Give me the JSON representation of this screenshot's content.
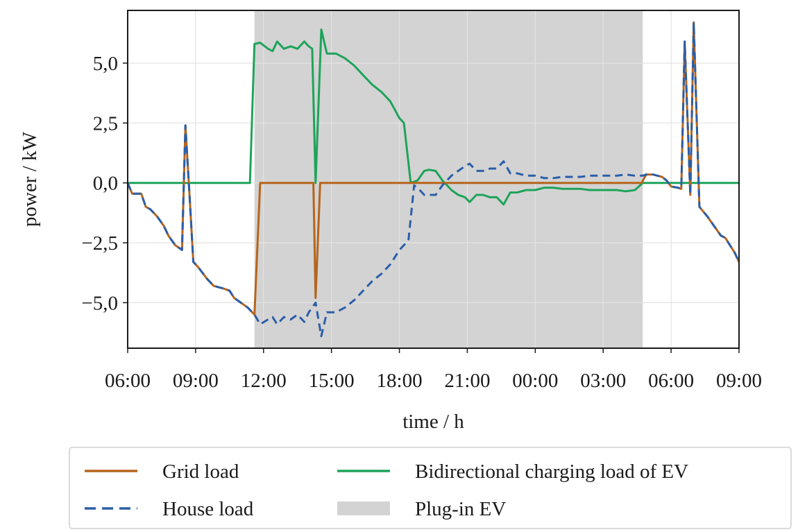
{
  "chart_data": {
    "type": "line",
    "title": "",
    "xlabel": "time / h",
    "ylabel": "power / kW",
    "x_unit": "hours from 06:00",
    "xlim": [
      0,
      27
    ],
    "ylim": [
      -6.9,
      7.2
    ],
    "x_ticks": [
      {
        "value": 0,
        "label": "06:00"
      },
      {
        "value": 3,
        "label": "09:00"
      },
      {
        "value": 6,
        "label": "12:00"
      },
      {
        "value": 9,
        "label": "15:00"
      },
      {
        "value": 12,
        "label": "18:00"
      },
      {
        "value": 15,
        "label": "21:00"
      },
      {
        "value": 18,
        "label": "00:00"
      },
      {
        "value": 21,
        "label": "03:00"
      },
      {
        "value": 24,
        "label": "06:00"
      },
      {
        "value": 27,
        "label": "09:00"
      }
    ],
    "y_ticks": [
      {
        "value": -5.0,
        "label": "−5,0"
      },
      {
        "value": -2.5,
        "label": "−2,5"
      },
      {
        "value": 0.0,
        "label": "0,0"
      },
      {
        "value": 2.5,
        "label": "2,5"
      },
      {
        "value": 5.0,
        "label": "5,0"
      }
    ],
    "grid": true,
    "legend_position": "bottom-outside",
    "shaded_regions": [
      {
        "name": "Plug-in EV",
        "x_start": 5.6,
        "x_end": 22.75,
        "color": "#d3d3d3"
      }
    ],
    "series": [
      {
        "name": "Grid load",
        "color": "#b5651d",
        "style": "solid",
        "points": [
          [
            0,
            0
          ],
          [
            0.2,
            -0.45
          ],
          [
            0.6,
            -0.45
          ],
          [
            0.8,
            -1.0
          ],
          [
            1.0,
            -1.1
          ],
          [
            1.3,
            -1.4
          ],
          [
            1.6,
            -1.8
          ],
          [
            1.8,
            -2.2
          ],
          [
            2.1,
            -2.6
          ],
          [
            2.4,
            -2.8
          ],
          [
            2.55,
            2.4
          ],
          [
            2.75,
            -0.8
          ],
          [
            2.9,
            -3.3
          ],
          [
            3.1,
            -3.5
          ],
          [
            3.5,
            -4.0
          ],
          [
            3.8,
            -4.3
          ],
          [
            4.2,
            -4.4
          ],
          [
            4.5,
            -4.5
          ],
          [
            4.7,
            -4.8
          ],
          [
            5.0,
            -5.0
          ],
          [
            5.3,
            -5.2
          ],
          [
            5.6,
            -5.5
          ],
          [
            5.85,
            0
          ],
          [
            8.2,
            0
          ],
          [
            8.3,
            -4.8
          ],
          [
            8.5,
            0
          ],
          [
            19,
            0
          ],
          [
            22.7,
            0
          ],
          [
            22.9,
            0.35
          ],
          [
            23.2,
            0.35
          ],
          [
            23.4,
            0.3
          ],
          [
            23.6,
            0.25
          ],
          [
            23.8,
            0.1
          ],
          [
            24.0,
            -0.15
          ],
          [
            24.3,
            -0.2
          ],
          [
            24.45,
            -0.25
          ],
          [
            24.6,
            5.9
          ],
          [
            24.85,
            -0.5
          ],
          [
            25.0,
            6.7
          ],
          [
            25.25,
            -1.0
          ],
          [
            25.6,
            -1.4
          ],
          [
            25.9,
            -1.8
          ],
          [
            26.2,
            -2.2
          ],
          [
            26.4,
            -2.3
          ],
          [
            26.6,
            -2.6
          ],
          [
            26.8,
            -2.9
          ],
          [
            27,
            -3.3
          ]
        ]
      },
      {
        "name": "House load",
        "color": "#2b5ea8",
        "style": "dashed",
        "points": [
          [
            0,
            0
          ],
          [
            0.2,
            -0.45
          ],
          [
            0.6,
            -0.45
          ],
          [
            0.8,
            -1.0
          ],
          [
            1.0,
            -1.1
          ],
          [
            1.3,
            -1.4
          ],
          [
            1.6,
            -1.8
          ],
          [
            1.8,
            -2.2
          ],
          [
            2.1,
            -2.6
          ],
          [
            2.4,
            -2.8
          ],
          [
            2.55,
            2.4
          ],
          [
            2.75,
            -0.8
          ],
          [
            2.9,
            -3.3
          ],
          [
            3.1,
            -3.5
          ],
          [
            3.5,
            -4.0
          ],
          [
            3.8,
            -4.3
          ],
          [
            4.2,
            -4.4
          ],
          [
            4.5,
            -4.5
          ],
          [
            4.7,
            -4.8
          ],
          [
            5.0,
            -5.0
          ],
          [
            5.3,
            -5.2
          ],
          [
            5.6,
            -5.5
          ],
          [
            5.85,
            -5.9
          ],
          [
            6.2,
            -5.7
          ],
          [
            6.4,
            -5.6
          ],
          [
            6.6,
            -5.9
          ],
          [
            6.9,
            -5.6
          ],
          [
            7.2,
            -5.7
          ],
          [
            7.5,
            -5.5
          ],
          [
            7.8,
            -5.8
          ],
          [
            8.0,
            -5.4
          ],
          [
            8.3,
            -5.0
          ],
          [
            8.55,
            -6.4
          ],
          [
            8.8,
            -5.4
          ],
          [
            9.2,
            -5.4
          ],
          [
            9.6,
            -5.2
          ],
          [
            10.0,
            -4.9
          ],
          [
            10.4,
            -4.5
          ],
          [
            10.8,
            -4.1
          ],
          [
            11.2,
            -3.8
          ],
          [
            11.6,
            -3.4
          ],
          [
            12.0,
            -2.8
          ],
          [
            12.4,
            -2.4
          ],
          [
            12.65,
            -0.1
          ],
          [
            12.9,
            -0.3
          ],
          [
            13.1,
            -0.5
          ],
          [
            13.3,
            -0.5
          ],
          [
            13.6,
            -0.5
          ],
          [
            13.9,
            -0.1
          ],
          [
            14.3,
            0.3
          ],
          [
            14.6,
            0.5
          ],
          [
            14.9,
            0.7
          ],
          [
            15.1,
            0.8
          ],
          [
            15.4,
            0.5
          ],
          [
            15.7,
            0.5
          ],
          [
            16.0,
            0.6
          ],
          [
            16.3,
            0.6
          ],
          [
            16.6,
            0.9
          ],
          [
            16.9,
            0.4
          ],
          [
            17.2,
            0.4
          ],
          [
            17.6,
            0.3
          ],
          [
            18.0,
            0.3
          ],
          [
            18.4,
            0.2
          ],
          [
            18.8,
            0.2
          ],
          [
            19.2,
            0.25
          ],
          [
            19.6,
            0.25
          ],
          [
            20.0,
            0.25
          ],
          [
            20.4,
            0.3
          ],
          [
            20.8,
            0.3
          ],
          [
            21.2,
            0.3
          ],
          [
            21.6,
            0.3
          ],
          [
            22.0,
            0.35
          ],
          [
            22.4,
            0.3
          ],
          [
            22.75,
            0.3
          ],
          [
            22.9,
            0.35
          ],
          [
            23.2,
            0.35
          ],
          [
            23.4,
            0.3
          ],
          [
            23.6,
            0.25
          ],
          [
            23.8,
            0.1
          ],
          [
            24.0,
            -0.15
          ],
          [
            24.3,
            -0.2
          ],
          [
            24.45,
            -0.25
          ],
          [
            24.6,
            5.9
          ],
          [
            24.85,
            -0.5
          ],
          [
            25.0,
            6.7
          ],
          [
            25.25,
            -1.0
          ],
          [
            25.6,
            -1.4
          ],
          [
            25.9,
            -1.8
          ],
          [
            26.2,
            -2.2
          ],
          [
            26.4,
            -2.3
          ],
          [
            26.6,
            -2.6
          ],
          [
            26.8,
            -2.9
          ],
          [
            27,
            -3.3
          ]
        ]
      },
      {
        "name": "Bidirectional charging load of EV",
        "color": "#1ea35a",
        "style": "solid",
        "points": [
          [
            0,
            0
          ],
          [
            5.4,
            0
          ],
          [
            5.6,
            5.8
          ],
          [
            5.85,
            5.85
          ],
          [
            6.2,
            5.6
          ],
          [
            6.4,
            5.5
          ],
          [
            6.6,
            5.9
          ],
          [
            6.9,
            5.6
          ],
          [
            7.2,
            5.7
          ],
          [
            7.5,
            5.6
          ],
          [
            7.8,
            5.9
          ],
          [
            8.0,
            5.7
          ],
          [
            8.15,
            5.6
          ],
          [
            8.3,
            0
          ],
          [
            8.55,
            6.4
          ],
          [
            8.8,
            5.4
          ],
          [
            9.2,
            5.4
          ],
          [
            9.6,
            5.2
          ],
          [
            10.0,
            4.9
          ],
          [
            10.4,
            4.5
          ],
          [
            10.8,
            4.1
          ],
          [
            11.2,
            3.8
          ],
          [
            11.6,
            3.4
          ],
          [
            12.0,
            2.7
          ],
          [
            12.2,
            2.5
          ],
          [
            12.5,
            0
          ],
          [
            12.8,
            0.1
          ],
          [
            13.1,
            0.5
          ],
          [
            13.3,
            0.55
          ],
          [
            13.6,
            0.5
          ],
          [
            13.9,
            0.1
          ],
          [
            14.3,
            -0.3
          ],
          [
            14.6,
            -0.5
          ],
          [
            14.9,
            -0.6
          ],
          [
            15.1,
            -0.8
          ],
          [
            15.4,
            -0.5
          ],
          [
            15.7,
            -0.5
          ],
          [
            16.0,
            -0.6
          ],
          [
            16.3,
            -0.6
          ],
          [
            16.6,
            -0.9
          ],
          [
            16.9,
            -0.4
          ],
          [
            17.2,
            -0.4
          ],
          [
            17.6,
            -0.3
          ],
          [
            18.0,
            -0.3
          ],
          [
            18.4,
            -0.2
          ],
          [
            18.8,
            -0.2
          ],
          [
            19.2,
            -0.25
          ],
          [
            19.6,
            -0.25
          ],
          [
            20.0,
            -0.25
          ],
          [
            20.4,
            -0.3
          ],
          [
            20.8,
            -0.3
          ],
          [
            21.2,
            -0.3
          ],
          [
            21.6,
            -0.3
          ],
          [
            22.0,
            -0.35
          ],
          [
            22.4,
            -0.3
          ],
          [
            22.75,
            0
          ],
          [
            27,
            0
          ]
        ]
      }
    ]
  }
}
